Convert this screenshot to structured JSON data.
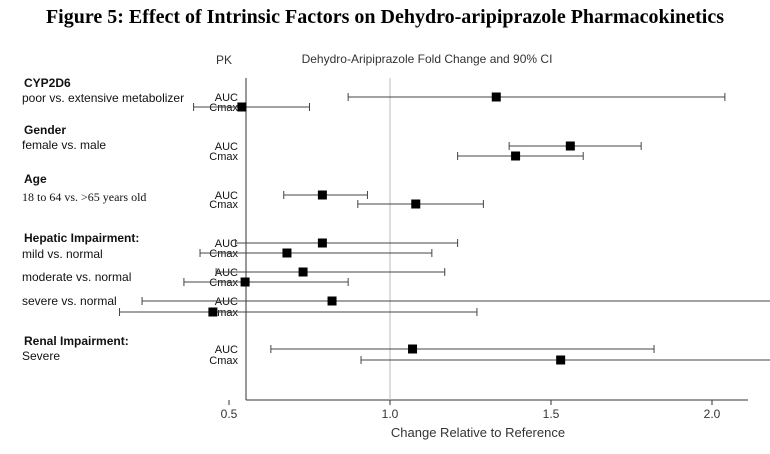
{
  "figure_title": "Figure 5: Effect of Intrinsic Factors on Dehydro-aripiprazole Pharmacokinetics",
  "chart_data": {
    "type": "forest",
    "title": "Dehydro-Aripiprazole Fold Change and 90% CI",
    "pk_header": "PK",
    "xlabel": "Change Relative to Reference",
    "xlim": [
      0.1,
      3.2
    ],
    "xticks": [
      "0.5",
      "1.0",
      "1.5",
      "2.0",
      "2.5",
      "3.0"
    ],
    "reference_line": 1.0,
    "groups": [
      {
        "heading": "CYP2D6",
        "subgroups": [
          {
            "label": "poor vs. extensive metabolizer",
            "rows": [
              {
                "pk": "AUC",
                "estimate": 1.33,
                "lower": 0.87,
                "upper": 2.04
              },
              {
                "pk": "Cmax",
                "estimate": 0.54,
                "lower": 0.39,
                "upper": 0.75
              }
            ]
          }
        ]
      },
      {
        "heading": "Gender",
        "subgroups": [
          {
            "label": "female vs. male",
            "rows": [
              {
                "pk": "AUC",
                "estimate": 1.56,
                "lower": 1.37,
                "upper": 1.78
              },
              {
                "pk": "Cmax",
                "estimate": 1.39,
                "lower": 1.21,
                "upper": 1.6
              }
            ]
          }
        ]
      },
      {
        "heading": "Age",
        "subgroups": [
          {
            "label": "18 to 64 vs. >65 years old",
            "rows": [
              {
                "pk": "AUC",
                "estimate": 0.79,
                "lower": 0.67,
                "upper": 0.93
              },
              {
                "pk": "Cmax",
                "estimate": 1.08,
                "lower": 0.9,
                "upper": 1.29
              }
            ]
          }
        ]
      },
      {
        "heading": "Hepatic Impairment:",
        "subgroups": [
          {
            "label": "mild vs. normal",
            "rows": [
              {
                "pk": "AUC",
                "estimate": 0.79,
                "lower": 0.52,
                "upper": 1.21
              },
              {
                "pk": "Cmax",
                "estimate": 0.68,
                "lower": 0.41,
                "upper": 1.13
              }
            ]
          },
          {
            "label": "moderate vs. normal",
            "rows": [
              {
                "pk": "AUC",
                "estimate": 0.73,
                "lower": 0.46,
                "upper": 1.17
              },
              {
                "pk": "Cmax",
                "estimate": 0.55,
                "lower": 0.36,
                "upper": 0.87
              }
            ]
          },
          {
            "label": "severe vs. normal",
            "rows": [
              {
                "pk": "AUC",
                "estimate": 0.82,
                "lower": 0.23,
                "upper": 3.01
              },
              {
                "pk": "Cmax",
                "estimate": 0.45,
                "lower": 0.16,
                "upper": 1.27
              }
            ]
          }
        ]
      },
      {
        "heading": "Renal Impairment:",
        "subgroups": [
          {
            "label": "Severe",
            "rows": [
              {
                "pk": "AUC",
                "estimate": 1.07,
                "lower": 0.63,
                "upper": 1.82
              },
              {
                "pk": "Cmax",
                "estimate": 1.53,
                "lower": 0.91,
                "upper": 2.58
              }
            ]
          }
        ]
      }
    ]
  }
}
